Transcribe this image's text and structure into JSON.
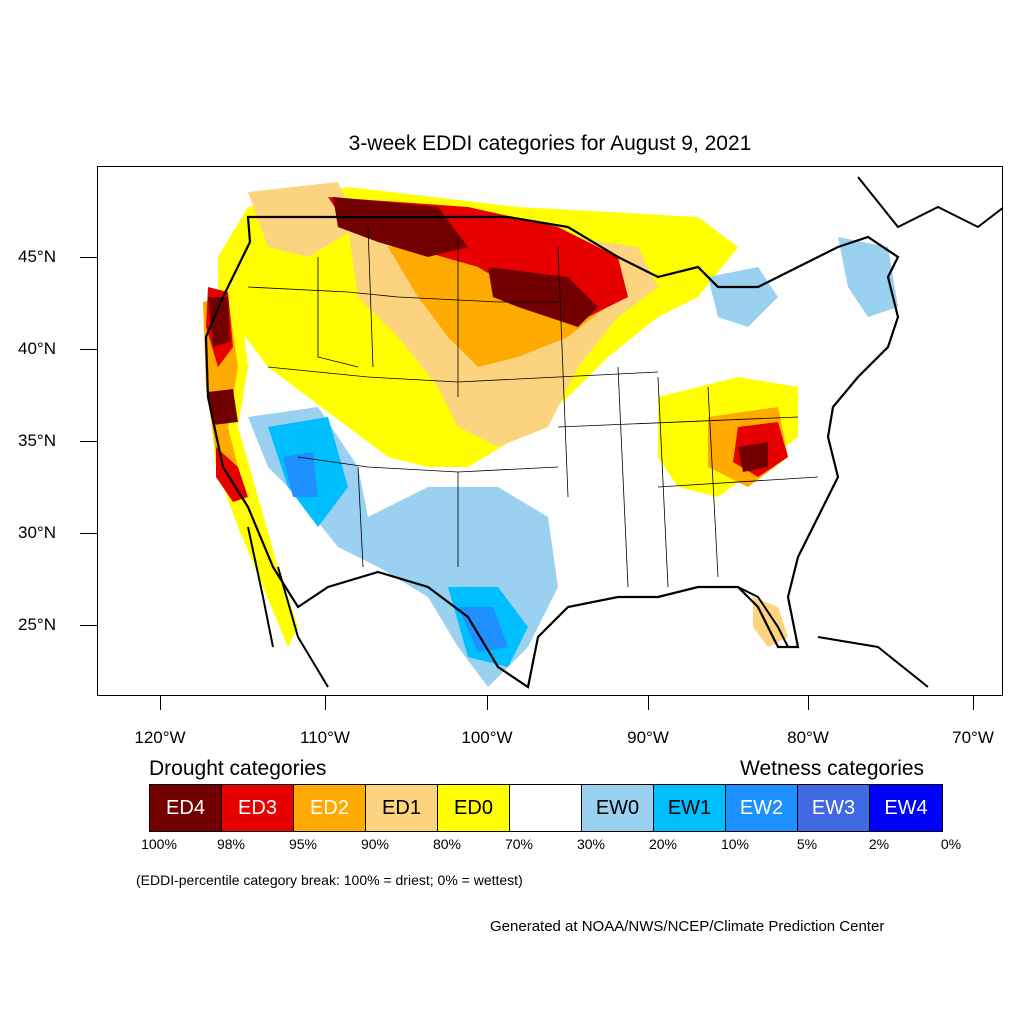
{
  "title": "3-week EDDI categories for August 9, 2021",
  "lat_labels": [
    "45°N",
    "40°N",
    "35°N",
    "30°N",
    "25°N"
  ],
  "lon_labels": [
    "120°W",
    "110°W",
    "100°W",
    "90°W",
    "80°W",
    "70°W"
  ],
  "legend": {
    "drought_header": "Drought categories",
    "wetness_header": "Wetness categories",
    "categories": [
      {
        "label": "ED4",
        "color": "#730000",
        "text_color": "#ffffff"
      },
      {
        "label": "ED3",
        "color": "#e60000",
        "text_color": "#ffffff"
      },
      {
        "label": "ED2",
        "color": "#ffaa00",
        "text_color": "#ffffff"
      },
      {
        "label": "ED1",
        "color": "#fcd37f",
        "text_color": "#000000"
      },
      {
        "label": "ED0",
        "color": "#ffff00",
        "text_color": "#000000"
      },
      {
        "label": "",
        "color": "#ffffff",
        "text_color": "#000000"
      },
      {
        "label": "EW0",
        "color": "#9ad0f0",
        "text_color": "#000000"
      },
      {
        "label": "EW1",
        "color": "#00bfff",
        "text_color": "#000000"
      },
      {
        "label": "EW2",
        "color": "#1e90ff",
        "text_color": "#ffffff"
      },
      {
        "label": "EW3",
        "color": "#4169e1",
        "text_color": "#ffffff"
      },
      {
        "label": "EW4",
        "color": "#0000ff",
        "text_color": "#ffffff"
      }
    ],
    "breaks": [
      "100%",
      "98%",
      "95%",
      "90%",
      "80%",
      "70%",
      "30%",
      "20%",
      "10%",
      "5%",
      "2%",
      "0%"
    ]
  },
  "breaks_note": "(EDDI-percentile category break: 100% = driest; 0% = wettest)",
  "credit": "Generated at NOAA/NWS/NCEP/Climate Prediction Center"
}
